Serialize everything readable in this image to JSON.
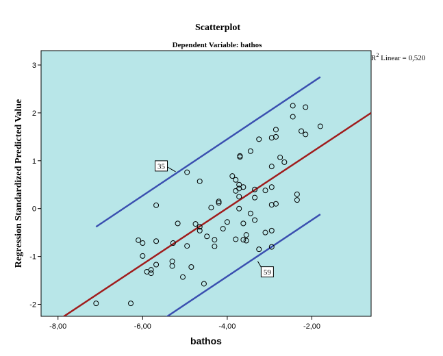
{
  "chart_data": {
    "type": "scatter",
    "title": "Scatterplot",
    "subtitle": "Dependent Variable: bathos",
    "xlabel": "bathos",
    "ylabel": "Regression Standardized Predicted Value",
    "xlim": [
      -8.4,
      -0.6
    ],
    "ylim": [
      -2.25,
      3.3
    ],
    "x_ticks": [
      -8,
      -6,
      -4,
      -2
    ],
    "x_tick_labels": [
      "-8,00",
      "-6,00",
      "-4,00",
      "-2,00"
    ],
    "y_ticks": [
      -2,
      -1,
      0,
      1,
      2,
      3
    ],
    "y_tick_labels": [
      "-2",
      "-1",
      "0",
      "1",
      "2",
      "3"
    ],
    "r2_label": {
      "prefix": "R",
      "superscript": "2",
      "text": " Linear = 0,520"
    },
    "grid": false,
    "colors": {
      "plot_background": "#b8e6e8",
      "fit_line": "#a01c1c",
      "interval_lines": "#3a4fb0",
      "points": "#000000"
    },
    "fit_line": {
      "x": [
        -8.2,
        -0.6
      ],
      "y": [
        -2.45,
        2.0
      ]
    },
    "upper_interval": {
      "x": [
        -7.1,
        -1.8
      ],
      "y": [
        -0.38,
        2.75
      ]
    },
    "lower_interval": {
      "x": [
        -5.5,
        -1.8
      ],
      "y": [
        -2.3,
        -0.12
      ]
    },
    "annotations": [
      {
        "text": "35",
        "x": -5.22,
        "y": 0.77
      },
      {
        "text": "59",
        "x": -3.28,
        "y": -1.1
      }
    ],
    "points": [
      {
        "x": -7.1,
        "y": -1.98
      },
      {
        "x": -6.28,
        "y": -1.98
      },
      {
        "x": -6.1,
        "y": -0.66
      },
      {
        "x": -6.0,
        "y": -0.72
      },
      {
        "x": -6.0,
        "y": -0.99
      },
      {
        "x": -5.9,
        "y": -1.32
      },
      {
        "x": -5.8,
        "y": -1.35
      },
      {
        "x": -5.8,
        "y": -1.28
      },
      {
        "x": -5.68,
        "y": -1.17
      },
      {
        "x": -5.68,
        "y": -0.68
      },
      {
        "x": -5.68,
        "y": 0.07
      },
      {
        "x": -5.3,
        "y": -1.1
      },
      {
        "x": -5.3,
        "y": -1.2
      },
      {
        "x": -5.28,
        "y": -0.72
      },
      {
        "x": -5.17,
        "y": -0.31
      },
      {
        "x": -5.05,
        "y": -1.43
      },
      {
        "x": -4.95,
        "y": -0.78
      },
      {
        "x": -4.95,
        "y": 0.76
      },
      {
        "x": -4.85,
        "y": -1.22
      },
      {
        "x": -4.75,
        "y": -0.32
      },
      {
        "x": -4.65,
        "y": -0.38
      },
      {
        "x": -4.65,
        "y": -0.46
      },
      {
        "x": -4.65,
        "y": 0.57
      },
      {
        "x": -4.55,
        "y": -1.57
      },
      {
        "x": -4.48,
        "y": -0.58
      },
      {
        "x": -4.38,
        "y": 0.02
      },
      {
        "x": -4.3,
        "y": -0.65
      },
      {
        "x": -4.3,
        "y": -0.79
      },
      {
        "x": -4.2,
        "y": 0.12
      },
      {
        "x": -4.2,
        "y": 0.15
      },
      {
        "x": -4.1,
        "y": -0.42
      },
      {
        "x": -4.0,
        "y": -0.28
      },
      {
        "x": -3.88,
        "y": 0.68
      },
      {
        "x": -3.8,
        "y": 0.6
      },
      {
        "x": -3.8,
        "y": 0.37
      },
      {
        "x": -3.8,
        "y": -0.64
      },
      {
        "x": -3.72,
        "y": 0.5
      },
      {
        "x": -3.72,
        "y": 0.42
      },
      {
        "x": -3.72,
        "y": 0.25
      },
      {
        "x": -3.72,
        "y": 0.0
      },
      {
        "x": -3.7,
        "y": 1.08
      },
      {
        "x": -3.7,
        "y": 1.1
      },
      {
        "x": -3.62,
        "y": 0.45
      },
      {
        "x": -3.62,
        "y": -0.31
      },
      {
        "x": -3.62,
        "y": -0.65
      },
      {
        "x": -3.55,
        "y": -0.55
      },
      {
        "x": -3.55,
        "y": -0.67
      },
      {
        "x": -3.45,
        "y": 1.2
      },
      {
        "x": -3.45,
        "y": -0.1
      },
      {
        "x": -3.35,
        "y": 0.4
      },
      {
        "x": -3.35,
        "y": 0.23
      },
      {
        "x": -3.35,
        "y": -0.24
      },
      {
        "x": -3.25,
        "y": 1.45
      },
      {
        "x": -3.25,
        "y": -0.85
      },
      {
        "x": -3.1,
        "y": 0.38
      },
      {
        "x": -3.1,
        "y": -0.5
      },
      {
        "x": -2.95,
        "y": 1.48
      },
      {
        "x": -2.95,
        "y": 0.88
      },
      {
        "x": -2.95,
        "y": 0.45
      },
      {
        "x": -2.95,
        "y": 0.08
      },
      {
        "x": -2.95,
        "y": -0.46
      },
      {
        "x": -2.95,
        "y": -0.8
      },
      {
        "x": -2.85,
        "y": 1.5
      },
      {
        "x": -2.85,
        "y": 1.65
      },
      {
        "x": -2.85,
        "y": 0.1
      },
      {
        "x": -2.75,
        "y": 1.07
      },
      {
        "x": -2.65,
        "y": 0.97
      },
      {
        "x": -2.45,
        "y": 2.15
      },
      {
        "x": -2.45,
        "y": 1.92
      },
      {
        "x": -2.35,
        "y": 0.3
      },
      {
        "x": -2.35,
        "y": 0.18
      },
      {
        "x": -2.25,
        "y": 1.62
      },
      {
        "x": -2.15,
        "y": 2.12
      },
      {
        "x": -2.15,
        "y": 1.55
      },
      {
        "x": -1.8,
        "y": 1.72
      }
    ]
  }
}
